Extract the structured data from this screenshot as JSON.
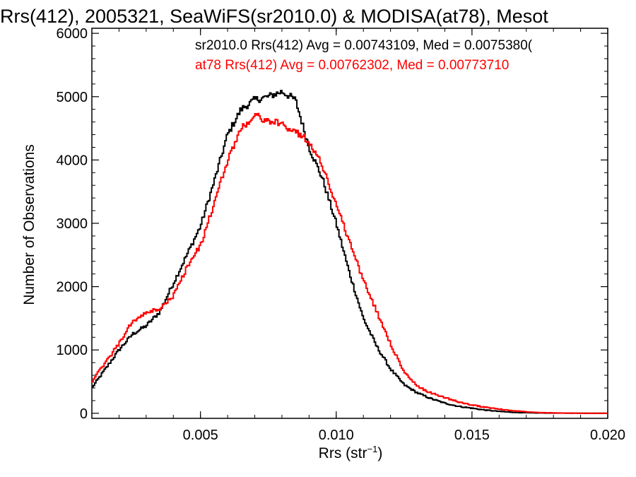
{
  "chart_data": {
    "type": "line",
    "title": "Rrs(412), 2005321, SeaWiFS(sr2010.0) & MODISA(at78), Mesot",
    "xlabel_main": "Rrs (str",
    "xlabel_sup": "−1",
    "xlabel_close": ")",
    "ylabel": "Number of Observations",
    "xlim": [
      0.001,
      0.02
    ],
    "ylim": [
      -80,
      6080
    ],
    "x_ticks": [
      {
        "value": 0.005,
        "label": "0.005"
      },
      {
        "value": 0.01,
        "label": "0.010"
      },
      {
        "value": 0.015,
        "label": "0.015"
      },
      {
        "value": 0.02,
        "label": "0.020"
      }
    ],
    "y_ticks": [
      {
        "value": 0,
        "label": "0"
      },
      {
        "value": 1000,
        "label": "1000"
      },
      {
        "value": 2000,
        "label": "2000"
      },
      {
        "value": 3000,
        "label": "3000"
      },
      {
        "value": 4000,
        "label": "4000"
      },
      {
        "value": 5000,
        "label": "5000"
      },
      {
        "value": 6000,
        "label": "6000"
      }
    ],
    "series": [
      {
        "name": "sr2010.0 Rrs(412) Avg = 0.00743109, Med = 0.0075380(",
        "color": "#000000",
        "x": [
          0.001,
          0.0015,
          0.002,
          0.0025,
          0.003,
          0.0035,
          0.004,
          0.0045,
          0.005,
          0.0055,
          0.006,
          0.0065,
          0.007,
          0.0075,
          0.008,
          0.0085,
          0.009,
          0.0095,
          0.01,
          0.0105,
          0.011,
          0.0115,
          0.012,
          0.0125,
          0.013,
          0.0135,
          0.014,
          0.0145,
          0.015,
          0.0155,
          0.016,
          0.0165,
          0.017,
          0.0175,
          0.018,
          0.0185,
          0.019,
          0.0195,
          0.02
        ],
        "y": [
          400,
          700,
          1000,
          1250,
          1380,
          1600,
          2050,
          2500,
          2950,
          3650,
          4400,
          4800,
          4950,
          5000,
          5080,
          4950,
          4200,
          3700,
          3000,
          2200,
          1500,
          1050,
          700,
          450,
          320,
          230,
          160,
          110,
          80,
          50,
          30,
          15,
          8,
          5,
          3,
          2,
          1,
          0,
          0
        ]
      },
      {
        "name": "at78 Rrs(412) Avg = 0.00762302, Med = 0.00773710",
        "color": "#ff0000",
        "x": [
          0.001,
          0.0015,
          0.002,
          0.0025,
          0.003,
          0.0035,
          0.004,
          0.0045,
          0.005,
          0.0055,
          0.006,
          0.0065,
          0.007,
          0.0075,
          0.008,
          0.0085,
          0.009,
          0.0095,
          0.01,
          0.0105,
          0.011,
          0.0115,
          0.012,
          0.0125,
          0.013,
          0.0135,
          0.014,
          0.0145,
          0.015,
          0.0155,
          0.016,
          0.0165,
          0.017,
          0.0175,
          0.018,
          0.0185,
          0.019,
          0.0195,
          0.02
        ],
        "y": [
          500,
          800,
          1100,
          1450,
          1580,
          1650,
          1850,
          2300,
          2650,
          3300,
          4000,
          4500,
          4700,
          4620,
          4560,
          4450,
          4300,
          3900,
          3300,
          2700,
          2100,
          1600,
          1100,
          650,
          420,
          320,
          250,
          180,
          130,
          95,
          65,
          40,
          25,
          12,
          6,
          3,
          1,
          0,
          0
        ]
      }
    ]
  }
}
